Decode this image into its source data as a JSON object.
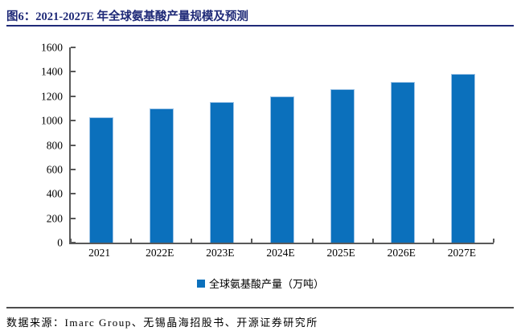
{
  "figure": {
    "title": "图6：2021-2027E 年全球氨基酸产量规模及预测",
    "source": "数据来源：Imarc Group、无锡晶海招股书、开源证券研究所"
  },
  "chart_data": {
    "type": "bar",
    "title": "2021-2027E 年全球氨基酸产量规模及预测",
    "categories": [
      "2021",
      "2022E",
      "2023E",
      "2024E",
      "2025E",
      "2026E",
      "2027E"
    ],
    "values": [
      1030,
      1100,
      1150,
      1200,
      1255,
      1320,
      1380
    ],
    "series_name": "全球氨基酸产量（万吨）",
    "xlabel": "",
    "ylabel": "",
    "unit": "万吨",
    "ylim": [
      0,
      1600
    ],
    "yticks": [
      0,
      200,
      400,
      600,
      800,
      1000,
      1200,
      1400,
      1600
    ],
    "grid": false,
    "legend_position": "bottom",
    "bar_color": "#0B70BC",
    "bar_border_color": "#9DC3E6"
  },
  "style": {
    "accent_navy": "#1F2A78",
    "axis_color": "#595959",
    "text_color": "#000000"
  }
}
